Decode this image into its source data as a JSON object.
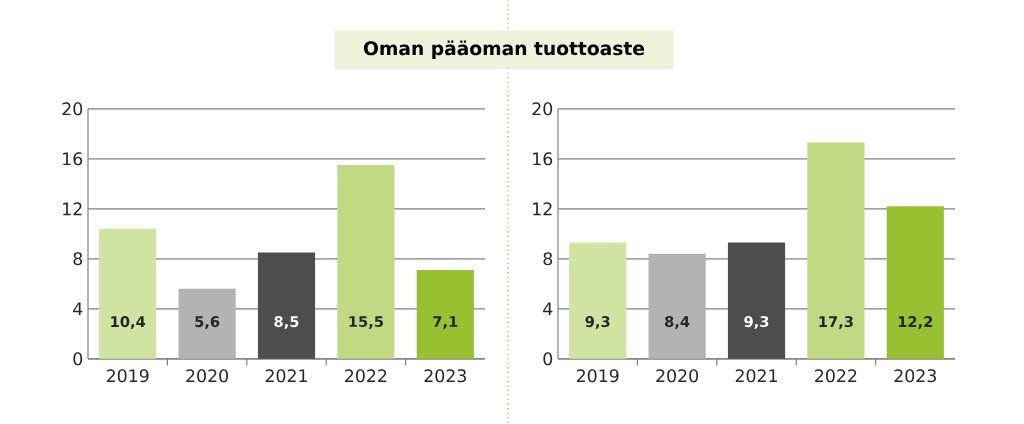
{
  "chart_data": [
    {
      "type": "bar",
      "title": "Oman pääoman tuottoaste",
      "categories": [
        "2019",
        "2020",
        "2021",
        "2022",
        "2023"
      ],
      "values": [
        10.4,
        5.6,
        8.5,
        15.5,
        7.1
      ],
      "value_labels": [
        "10,4",
        "5,6",
        "8,5",
        "15,5",
        "7,1"
      ],
      "colors": [
        "#d0e3a0",
        "#b3b3b3",
        "#4d4d4d",
        "#c0d982",
        "#97c130"
      ],
      "ylim": [
        0,
        20
      ],
      "yticks": [
        0,
        4,
        8,
        12,
        16,
        20
      ],
      "grid": "y"
    },
    {
      "type": "bar",
      "categories": [
        "2019",
        "2020",
        "2021",
        "2022",
        "2023"
      ],
      "values": [
        9.3,
        8.4,
        9.3,
        17.3,
        12.2
      ],
      "value_labels": [
        "9,3",
        "8,4",
        "9,3",
        "17,3",
        "12,2"
      ],
      "colors": [
        "#d0e3a0",
        "#b3b3b3",
        "#4d4d4d",
        "#c0d982",
        "#97c130"
      ],
      "ylim": [
        0,
        20
      ],
      "yticks": [
        0,
        4,
        8,
        12,
        16,
        20
      ],
      "grid": "y"
    }
  ]
}
